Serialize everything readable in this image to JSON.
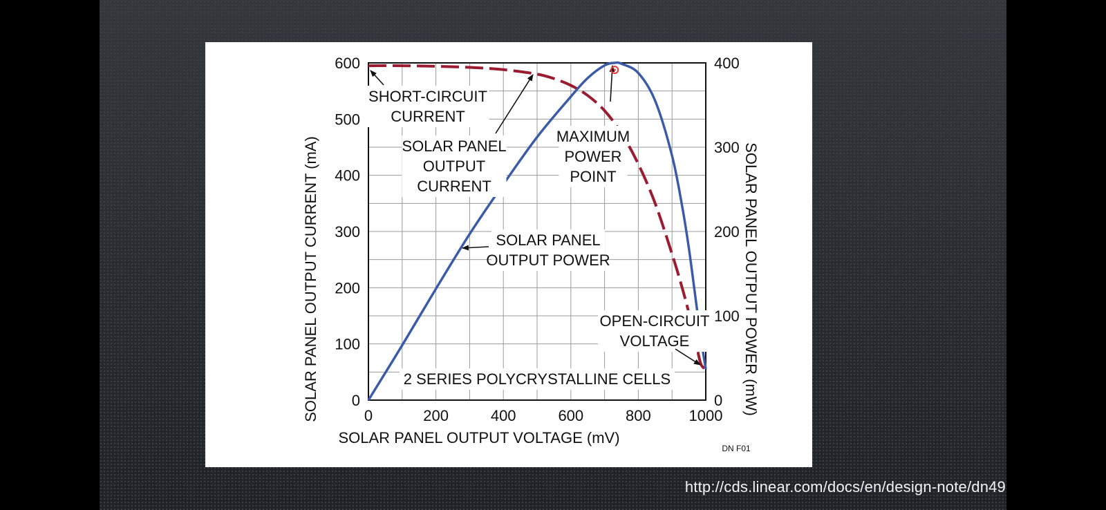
{
  "source_url": "http://cds.linear.com/docs/en/design-note/dn49",
  "figure_id": "DN F01",
  "chart_data": {
    "type": "line",
    "title": "",
    "xlabel": "SOLAR PANEL OUTPUT VOLTAGE (mV)",
    "ylabel_left": "SOLAR PANEL OUTPUT CURRENT (mA)",
    "ylabel_right": "SOLAR PANEL OUTPUT POWER (mW)",
    "xlim": [
      0,
      1000
    ],
    "ylim_left": [
      0,
      600
    ],
    "ylim_right": [
      0,
      400
    ],
    "x_ticks": [
      0,
      200,
      400,
      600,
      800,
      1000
    ],
    "y_left_ticks": [
      0,
      100,
      200,
      300,
      400,
      500,
      600
    ],
    "y_right_ticks": [
      0,
      100,
      200,
      300,
      400
    ],
    "grid": true,
    "colors": {
      "current": "#9b1b30",
      "power": "#3b5ba9"
    },
    "series": [
      {
        "axis": "left",
        "style": "dashed",
        "x": [
          0,
          100,
          200,
          300,
          400,
          500,
          550,
          600,
          650,
          700,
          750,
          800,
          850,
          900,
          930,
          950,
          970,
          985,
          1000
        ],
        "values": [
          595,
          595,
          594,
          592,
          588,
          580,
          572,
          560,
          542,
          515,
          475,
          420,
          350,
          260,
          200,
          155,
          105,
          65,
          55
        ]
      },
      {
        "axis": "right",
        "style": "solid",
        "x": [
          0,
          100,
          200,
          300,
          400,
          500,
          600,
          650,
          700,
          730,
          750,
          800,
          850,
          900,
          930,
          950,
          970,
          985,
          1000
        ],
        "values": [
          0,
          65,
          132,
          197,
          256,
          312,
          360,
          382,
          397,
          400,
          399,
          388,
          355,
          290,
          230,
          180,
          120,
          75,
          37
        ]
      }
    ],
    "annotations": [
      {
        "lines": [
          "SHORT-CIRCUIT",
          "CURRENT"
        ]
      },
      {
        "lines": [
          "SOLAR PANEL",
          "OUTPUT",
          "CURRENT"
        ]
      },
      {
        "lines": [
          "MAXIMUM",
          "POWER",
          "POINT"
        ]
      },
      {
        "lines": [
          "SOLAR PANEL",
          "OUTPUT POWER"
        ]
      },
      {
        "lines": [
          "OPEN-CIRCUIT",
          "VOLTAGE"
        ]
      },
      {
        "lines": [
          "2 SERIES POLYCRYSTALLINE CELLS"
        ]
      }
    ]
  }
}
